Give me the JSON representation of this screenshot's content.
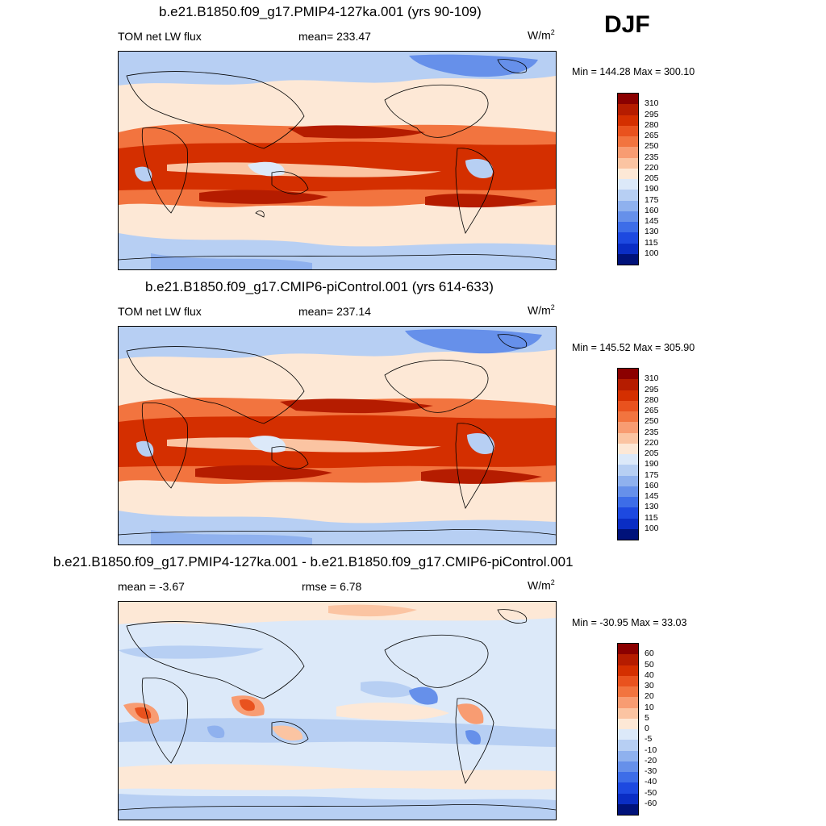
{
  "season": "DJF",
  "panels": [
    {
      "title": "b.e21.B1850.f09_g17.PMIP4-127ka.001 (yrs 90-109)",
      "left_label": "TOM net LW flux",
      "center_label": "mean= 233.47",
      "units": "W/m",
      "units_exp": "2",
      "minmax": "Min = 144.28 Max = 300.10",
      "colorbar": {
        "labels": [
          "310",
          "295",
          "280",
          "265",
          "250",
          "235",
          "220",
          "205",
          "190",
          "175",
          "160",
          "145",
          "130",
          "115",
          "100"
        ],
        "colors": [
          "#8b0000",
          "#b51c00",
          "#d42f00",
          "#e9521e",
          "#f2743f",
          "#f89c72",
          "#fbc4a2",
          "#fde8d6",
          "#dce9f9",
          "#b7cff3",
          "#8fb1ee",
          "#6690ea",
          "#3d6de8",
          "#1d49e0",
          "#0a2dc4",
          "#00127a"
        ]
      }
    },
    {
      "title": "b.e21.B1850.f09_g17.CMIP6-piControl.001 (yrs 614-633)",
      "left_label": "TOM net LW flux",
      "center_label": "mean= 237.14",
      "units": "W/m",
      "units_exp": "2",
      "minmax": "Min = 145.52 Max = 305.90",
      "colorbar": {
        "labels": [
          "310",
          "295",
          "280",
          "265",
          "250",
          "235",
          "220",
          "205",
          "190",
          "175",
          "160",
          "145",
          "130",
          "115",
          "100"
        ],
        "colors": [
          "#8b0000",
          "#b51c00",
          "#d42f00",
          "#e9521e",
          "#f2743f",
          "#f89c72",
          "#fbc4a2",
          "#fde8d6",
          "#dce9f9",
          "#b7cff3",
          "#8fb1ee",
          "#6690ea",
          "#3d6de8",
          "#1d49e0",
          "#0a2dc4",
          "#00127a"
        ]
      }
    },
    {
      "title": "b.e21.B1850.f09_g17.PMIP4-127ka.001 - b.e21.B1850.f09_g17.CMIP6-piControl.001",
      "left_label": "mean =  -3.67",
      "center_label": "rmse =   6.78",
      "units": "W/m",
      "units_exp": "2",
      "minmax": "Min = -30.95 Max =  33.03",
      "colorbar": {
        "labels": [
          "60",
          "50",
          "40",
          "30",
          "20",
          "10",
          "5",
          "0",
          "-5",
          "-10",
          "-20",
          "-30",
          "-40",
          "-50",
          "-60"
        ],
        "colors": [
          "#8b0000",
          "#b51c00",
          "#d42f00",
          "#e9521e",
          "#f2743f",
          "#f89c72",
          "#fbc4a2",
          "#fde8d6",
          "#dce9f9",
          "#b7cff3",
          "#8fb1ee",
          "#6690ea",
          "#3d6de8",
          "#1d49e0",
          "#0a2dc4",
          "#00127a"
        ]
      }
    }
  ]
}
